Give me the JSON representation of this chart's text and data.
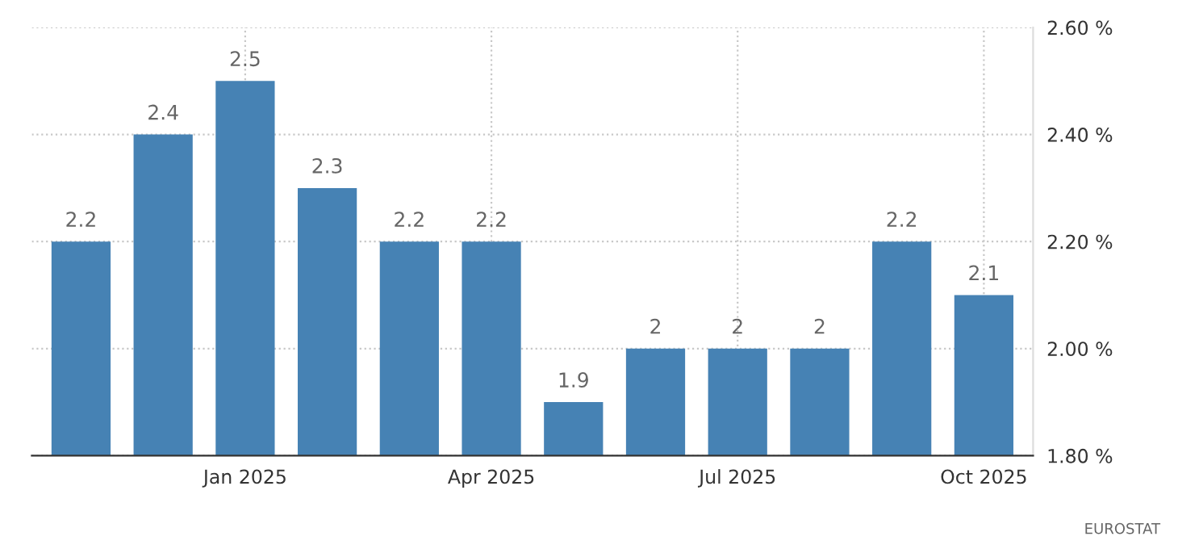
{
  "chart_data": {
    "type": "bar",
    "categories": [
      null,
      null,
      "Jan 2025",
      null,
      null,
      "Apr 2025",
      null,
      null,
      "Jul 2025",
      null,
      null,
      "Oct 2025"
    ],
    "values": [
      2.2,
      2.4,
      2.5,
      2.3,
      2.2,
      2.2,
      1.9,
      2,
      2,
      2,
      2.2,
      2.1
    ],
    "color": "#4682b4",
    "ylim": [
      1.8,
      2.6
    ],
    "yticks": [
      {
        "value": 1.8,
        "label": "1.80 %"
      },
      {
        "value": 2.0,
        "label": "2.00 %"
      },
      {
        "value": 2.2,
        "label": "2.20 %"
      },
      {
        "value": 2.4,
        "label": "2.40 %"
      },
      {
        "value": 2.6,
        "label": "2.60 %"
      }
    ],
    "grid": true,
    "data_labels": true,
    "annotations": [
      "EUROSTAT"
    ]
  }
}
